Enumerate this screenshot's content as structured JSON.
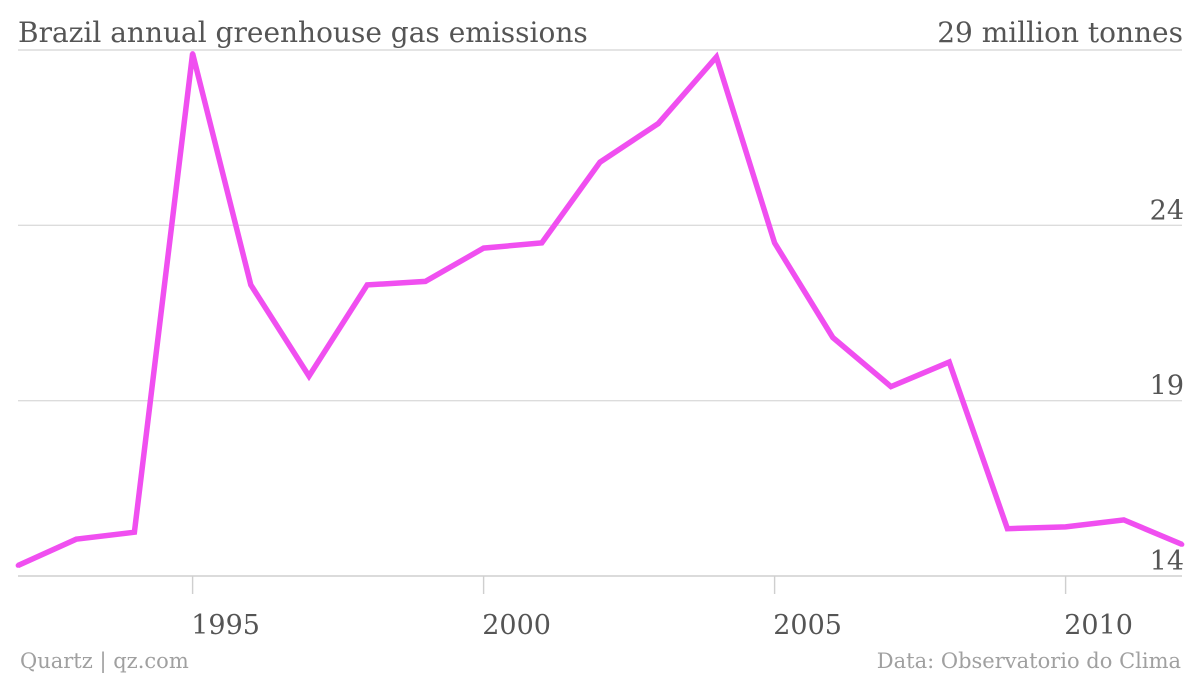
{
  "title": "Brazil annual greenhouse gas emissions",
  "footer": {
    "source_left": "Quartz | qz.com",
    "source_right": "Data: Observatorio do Clima"
  },
  "colors": {
    "line": "#f04ff0"
  },
  "chart_data": {
    "type": "line",
    "title": "Brazil annual greenhouse gas emissions",
    "xlabel": "",
    "ylabel": "",
    "top_label": "29 million tonnes",
    "x": [
      1992,
      1993,
      1994,
      1995,
      1996,
      1997,
      1998,
      1999,
      2000,
      2001,
      2002,
      2003,
      2004,
      2005,
      2006,
      2007,
      2008,
      2009,
      2010,
      2011,
      2012
    ],
    "series": [
      {
        "values": [
          14.3,
          15.05,
          15.25,
          28.9,
          22.3,
          19.7,
          22.3,
          22.4,
          23.35,
          23.5,
          25.8,
          26.9,
          28.8,
          23.5,
          20.8,
          19.4,
          20.1,
          15.35,
          15.4,
          15.6,
          14.9
        ]
      }
    ],
    "xticks": [
      1995,
      2000,
      2005,
      2010
    ],
    "yticks": [
      14,
      19,
      24
    ],
    "xlim": [
      1992,
      2012
    ],
    "ylim": [
      14,
      29
    ],
    "grid": true,
    "y_axis_position": "right"
  }
}
